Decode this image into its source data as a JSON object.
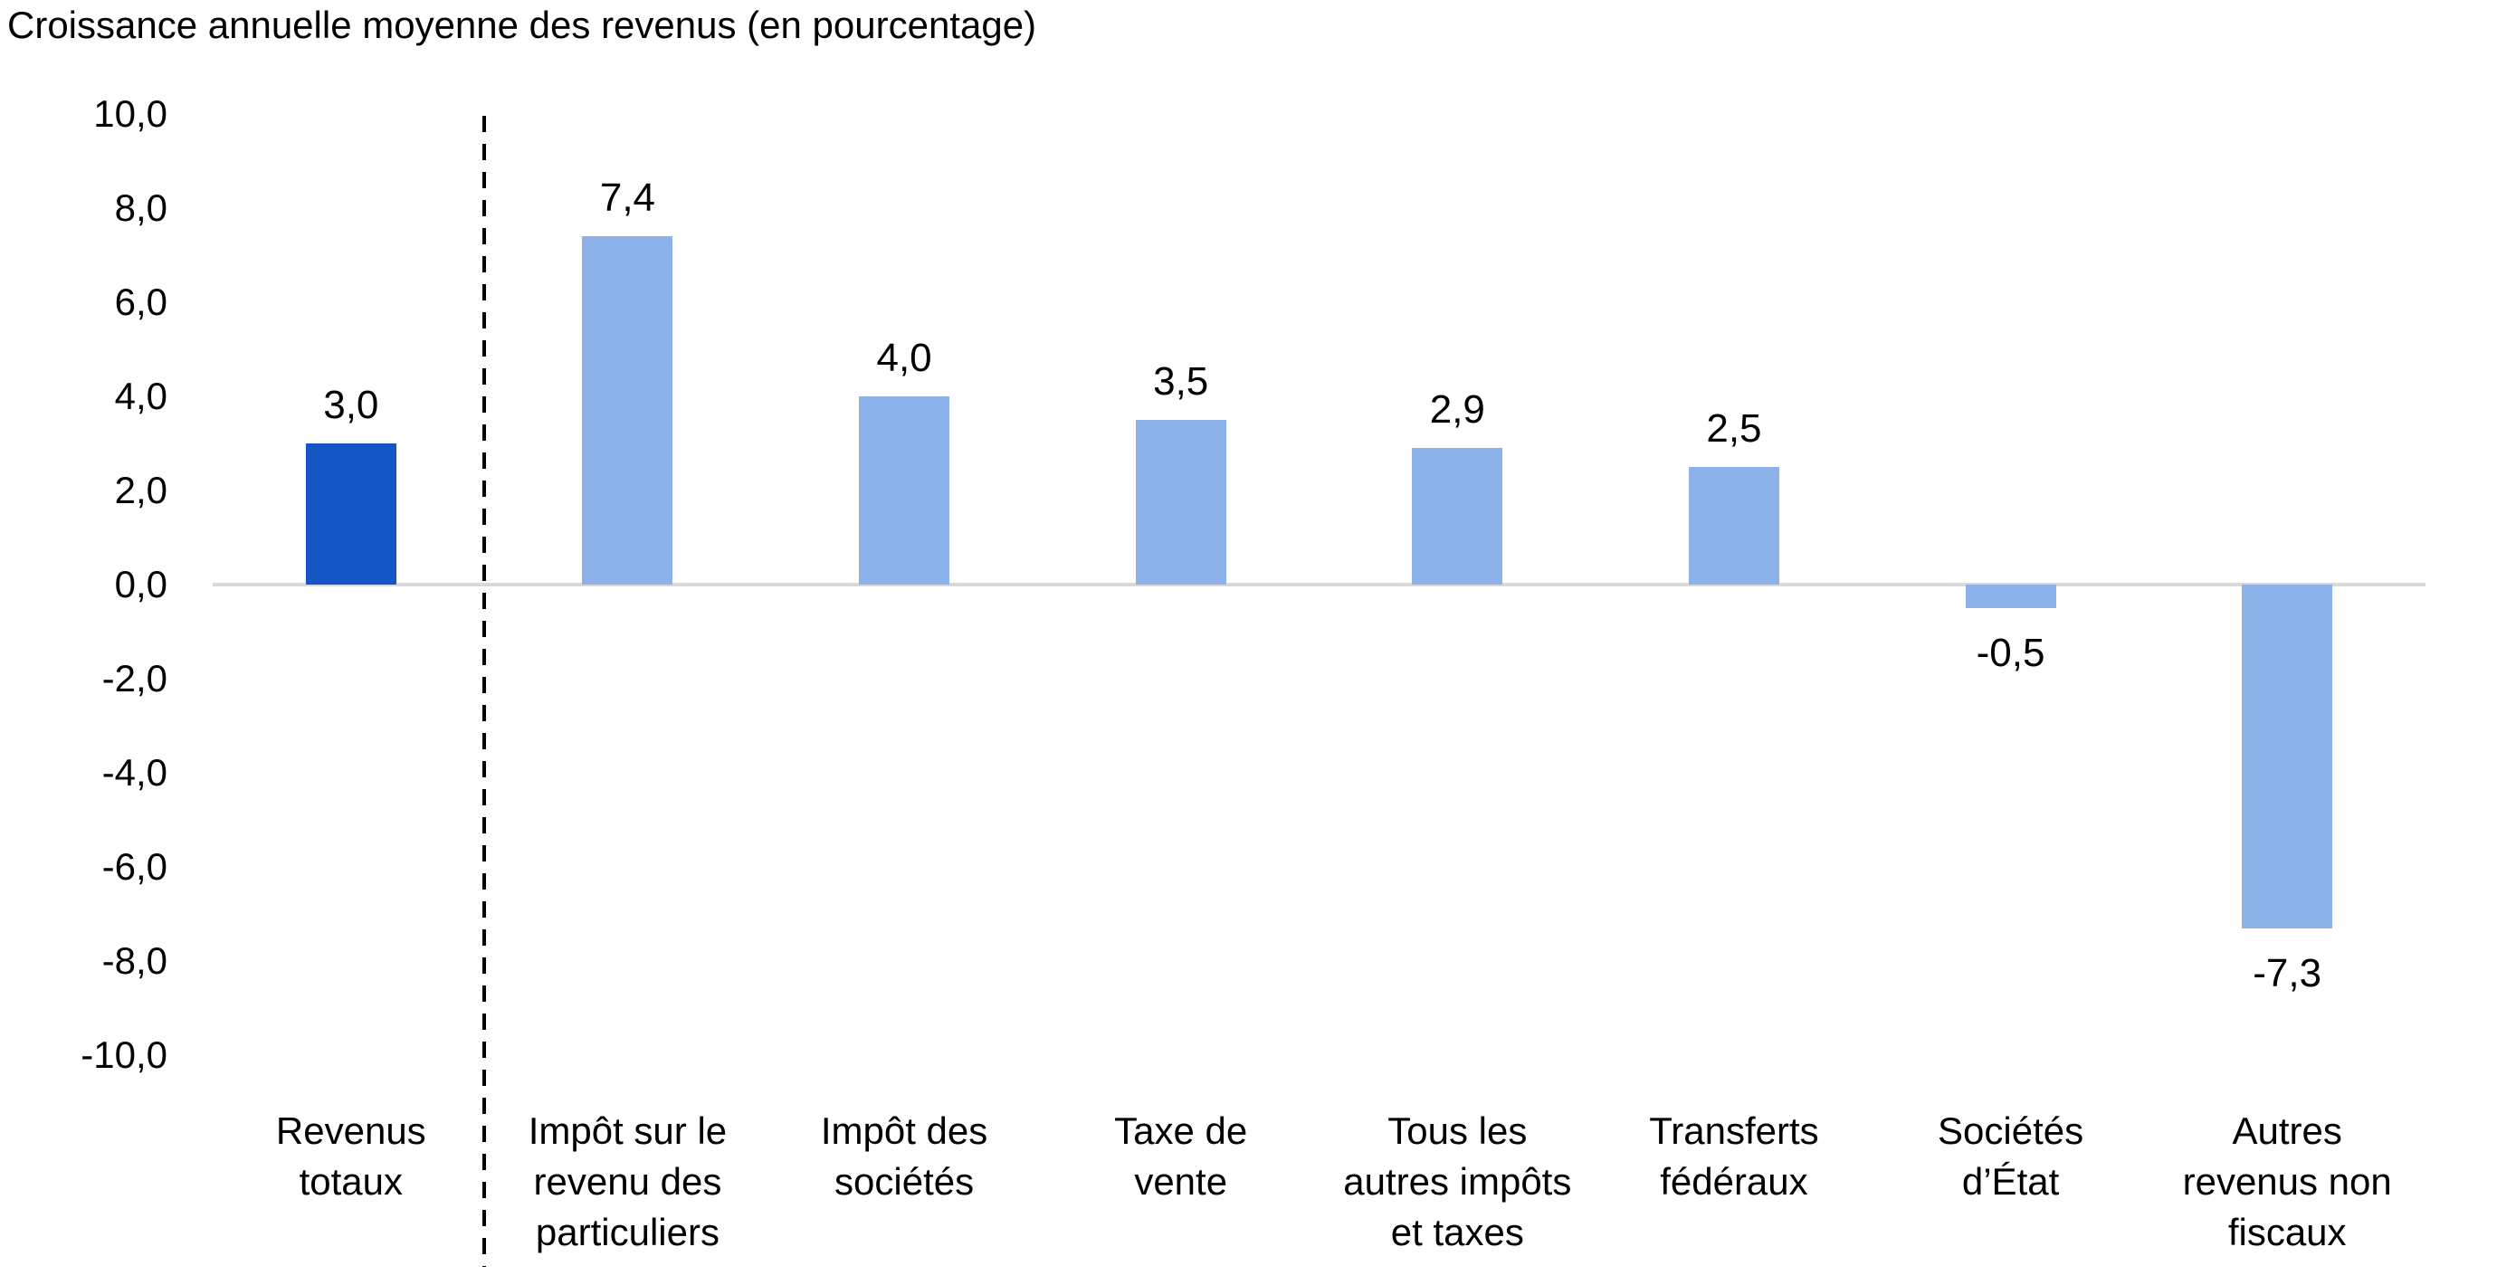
{
  "chart_data": {
    "type": "bar",
    "title": "Croissance annuelle moyenne des revenus (en pourcentage)",
    "categories": [
      "Revenus totaux",
      "Impôt sur le revenu des particuliers",
      "Impôt des sociétés",
      "Taxe de vente",
      "Tous les autres impôts et taxes",
      "Transferts fédéraux",
      "Sociétés d’État",
      "Autres revenus non fiscaux"
    ],
    "category_lines": [
      "Revenus\ntotaux",
      "Impôt sur le\nrevenu des\nparticuliers",
      "Impôt des\nsociétés",
      "Taxe de\nvente",
      "Tous les\nautres impôts\net taxes",
      "Transferts\nfédéraux",
      "Sociétés\nd’État",
      "Autres\nrevenus non\nfiscaux"
    ],
    "values": [
      3.0,
      7.4,
      4.0,
      3.5,
      2.9,
      2.5,
      -0.5,
      -7.3
    ],
    "value_labels": [
      "3,0",
      "7,4",
      "4,0",
      "3,5",
      "2,9",
      "2,5",
      "-0,5",
      "-7,3"
    ],
    "highlight_index": 0,
    "divider_after_index": 0,
    "ylim": [
      -10,
      10
    ],
    "ytick_labels": [
      "10,0",
      "8,0",
      "6,0",
      "4,0",
      "2,0",
      "0,0",
      "-2,0",
      "-4,0",
      "-6,0",
      "-8,0",
      "-10,0"
    ],
    "grid": false,
    "legend": false,
    "colors": {
      "bar_highlight": "#1556C6",
      "bar_regular": "#8DB2EA",
      "zero_line": "#D9D9D9",
      "divider_line": "#000000",
      "text": "#000000"
    }
  }
}
